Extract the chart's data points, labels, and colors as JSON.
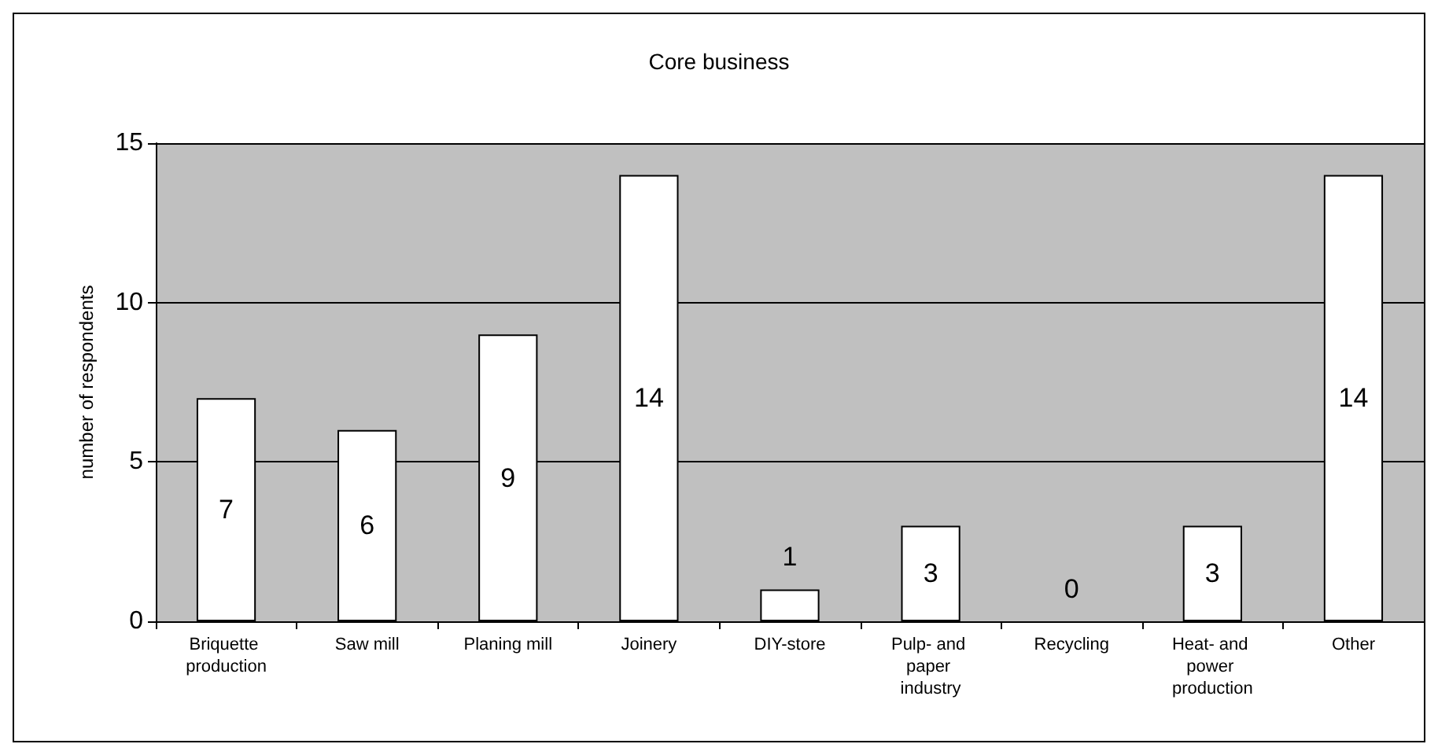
{
  "chart_data": {
    "type": "bar",
    "title": "Core business",
    "ylabel": "number of respondents",
    "categories": [
      "Briquette production",
      "Saw mill",
      "Planing mill",
      "Joinery",
      "DIY-store",
      "Pulp- and paper industry",
      "Recycling",
      "Heat- and power production",
      "Other"
    ],
    "values": [
      7,
      6,
      9,
      14,
      1,
      3,
      0,
      3,
      14
    ],
    "color": "#ffffff",
    "ylim": [
      0,
      15
    ],
    "yticks": [
      0,
      5,
      10,
      15
    ],
    "grid": "y",
    "data_labels": true
  }
}
